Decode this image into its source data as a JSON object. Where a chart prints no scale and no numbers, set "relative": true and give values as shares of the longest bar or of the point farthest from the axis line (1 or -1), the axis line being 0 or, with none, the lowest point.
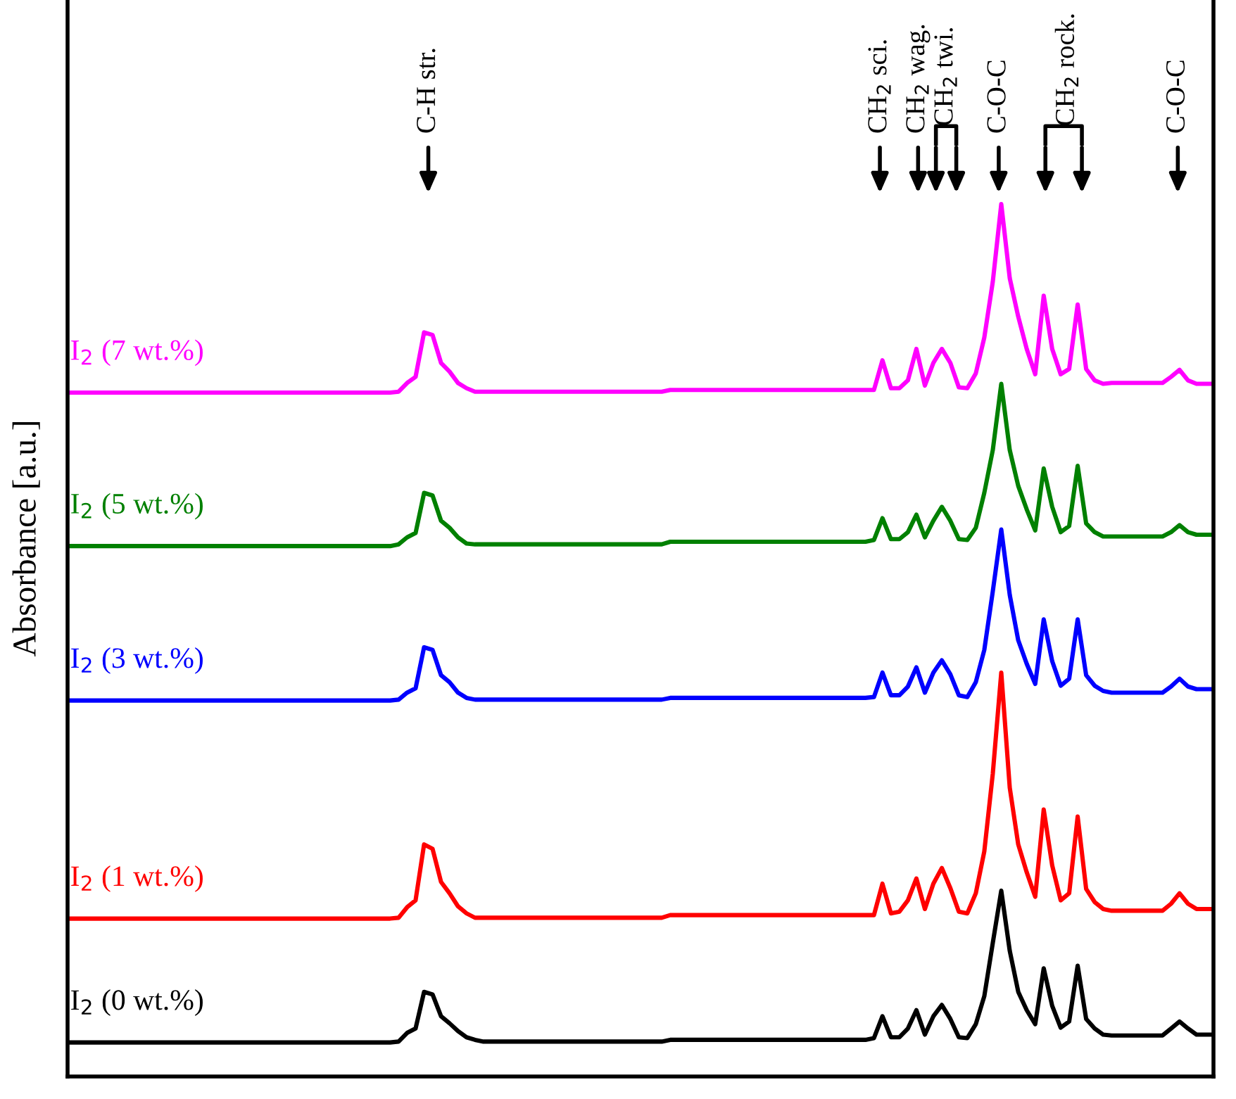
{
  "chart_data": {
    "type": "line",
    "relative": true,
    "ylabel": "Absorbance [a.u.]",
    "categories": [
      null,
      null,
      null,
      null,
      null,
      null,
      null,
      null,
      null,
      null,
      null,
      null,
      null,
      null,
      null,
      null,
      null,
      null,
      null,
      null,
      null,
      null,
      null,
      null,
      null,
      null,
      null,
      null,
      null,
      null,
      null,
      null,
      null,
      null,
      null,
      null,
      null,
      null,
      null,
      null,
      null,
      null,
      null,
      null,
      null,
      null,
      null,
      null,
      null,
      null,
      null,
      null,
      null,
      null,
      null,
      null,
      null,
      null,
      null,
      null,
      null,
      null,
      null,
      null,
      null,
      null,
      null,
      null,
      null,
      null,
      null,
      null,
      null,
      null,
      null,
      null,
      null,
      null,
      null,
      null,
      null,
      null,
      null,
      null,
      null,
      null,
      null,
      null,
      null,
      null,
      null,
      null,
      null,
      null,
      null,
      null,
      null,
      null,
      null,
      null,
      null,
      null,
      null,
      null,
      null,
      null,
      null,
      null,
      null,
      null,
      null,
      null,
      null,
      null,
      null,
      null,
      null,
      null,
      null,
      null,
      null,
      null,
      null,
      null,
      null,
      null,
      null,
      null,
      null,
      null,
      null,
      null,
      null,
      null,
      null,
      null
    ],
    "series": [
      {
        "name": "I$_{2}$ (7 wt.%)",
        "color": "#ff00ff",
        "values": [
          0.784,
          0.784,
          0.784,
          0.784,
          0.784,
          0.784,
          0.784,
          0.784,
          0.784,
          0.784,
          0.784,
          0.784,
          0.784,
          0.784,
          0.784,
          0.784,
          0.784,
          0.784,
          0.784,
          0.784,
          0.784,
          0.784,
          0.784,
          0.784,
          0.784,
          0.784,
          0.784,
          0.784,
          0.784,
          0.784,
          0.784,
          0.784,
          0.784,
          0.784,
          0.784,
          0.784,
          0.784,
          0.784,
          0.784,
          0.785,
          0.795,
          0.802,
          0.853,
          0.85,
          0.818,
          0.808,
          0.795,
          0.789,
          0.785,
          0.785,
          0.785,
          0.785,
          0.785,
          0.785,
          0.785,
          0.785,
          0.785,
          0.785,
          0.785,
          0.785,
          0.785,
          0.785,
          0.785,
          0.785,
          0.785,
          0.785,
          0.785,
          0.785,
          0.785,
          0.785,
          0.785,
          0.787,
          0.787,
          0.787,
          0.787,
          0.787,
          0.787,
          0.787,
          0.787,
          0.787,
          0.787,
          0.787,
          0.787,
          0.787,
          0.787,
          0.787,
          0.787,
          0.787,
          0.787,
          0.787,
          0.787,
          0.787,
          0.787,
          0.787,
          0.787,
          0.787,
          0.821,
          0.789,
          0.789,
          0.798,
          0.834,
          0.792,
          0.818,
          0.834,
          0.818,
          0.79,
          0.789,
          0.806,
          0.847,
          0.911,
          1.0,
          0.915,
          0.871,
          0.834,
          0.805,
          0.895,
          0.834,
          0.805,
          0.811,
          0.885,
          0.811,
          0.798,
          0.794,
          0.795,
          0.795,
          0.795,
          0.795,
          0.795,
          0.795,
          0.795,
          0.802,
          0.81,
          0.798,
          0.794,
          0.794,
          0.794
        ]
      },
      {
        "name": "I$_{2}$ (5 wt.%)",
        "color": "#008000",
        "values": [
          0.608,
          0.608,
          0.608,
          0.608,
          0.608,
          0.608,
          0.608,
          0.608,
          0.608,
          0.608,
          0.608,
          0.608,
          0.608,
          0.608,
          0.608,
          0.608,
          0.608,
          0.608,
          0.608,
          0.608,
          0.608,
          0.608,
          0.608,
          0.608,
          0.608,
          0.608,
          0.608,
          0.608,
          0.608,
          0.608,
          0.608,
          0.608,
          0.608,
          0.608,
          0.608,
          0.608,
          0.608,
          0.608,
          0.608,
          0.61,
          0.618,
          0.623,
          0.669,
          0.666,
          0.637,
          0.629,
          0.618,
          0.611,
          0.61,
          0.61,
          0.61,
          0.61,
          0.61,
          0.61,
          0.61,
          0.61,
          0.61,
          0.61,
          0.61,
          0.61,
          0.61,
          0.61,
          0.61,
          0.61,
          0.61,
          0.61,
          0.61,
          0.61,
          0.61,
          0.61,
          0.61,
          0.613,
          0.613,
          0.613,
          0.613,
          0.613,
          0.613,
          0.613,
          0.613,
          0.613,
          0.613,
          0.613,
          0.613,
          0.613,
          0.613,
          0.613,
          0.613,
          0.613,
          0.613,
          0.613,
          0.613,
          0.613,
          0.613,
          0.613,
          0.613,
          0.615,
          0.64,
          0.616,
          0.616,
          0.624,
          0.644,
          0.618,
          0.637,
          0.653,
          0.637,
          0.616,
          0.615,
          0.629,
          0.669,
          0.718,
          0.794,
          0.718,
          0.677,
          0.65,
          0.626,
          0.697,
          0.653,
          0.624,
          0.631,
          0.7,
          0.634,
          0.624,
          0.619,
          0.619,
          0.619,
          0.619,
          0.619,
          0.619,
          0.619,
          0.619,
          0.624,
          0.632,
          0.624,
          0.621,
          0.621,
          0.621
        ]
      },
      {
        "name": "I$_{2}$ (3 wt.%)",
        "color": "#0000ff",
        "values": [
          0.431,
          0.431,
          0.431,
          0.431,
          0.431,
          0.431,
          0.431,
          0.431,
          0.431,
          0.431,
          0.431,
          0.431,
          0.431,
          0.431,
          0.431,
          0.431,
          0.431,
          0.431,
          0.431,
          0.431,
          0.431,
          0.431,
          0.431,
          0.431,
          0.431,
          0.431,
          0.431,
          0.431,
          0.431,
          0.431,
          0.431,
          0.431,
          0.431,
          0.431,
          0.431,
          0.431,
          0.431,
          0.431,
          0.431,
          0.432,
          0.44,
          0.445,
          0.492,
          0.489,
          0.46,
          0.452,
          0.44,
          0.434,
          0.432,
          0.432,
          0.432,
          0.432,
          0.432,
          0.432,
          0.432,
          0.432,
          0.432,
          0.432,
          0.432,
          0.432,
          0.432,
          0.432,
          0.432,
          0.432,
          0.432,
          0.432,
          0.432,
          0.432,
          0.432,
          0.432,
          0.432,
          0.434,
          0.434,
          0.434,
          0.434,
          0.434,
          0.434,
          0.434,
          0.434,
          0.434,
          0.434,
          0.434,
          0.434,
          0.434,
          0.434,
          0.434,
          0.434,
          0.434,
          0.434,
          0.434,
          0.434,
          0.434,
          0.434,
          0.434,
          0.434,
          0.435,
          0.463,
          0.437,
          0.437,
          0.447,
          0.469,
          0.44,
          0.463,
          0.477,
          0.461,
          0.437,
          0.435,
          0.452,
          0.489,
          0.556,
          0.627,
          0.552,
          0.5,
          0.473,
          0.45,
          0.524,
          0.476,
          0.448,
          0.456,
          0.524,
          0.46,
          0.448,
          0.442,
          0.44,
          0.44,
          0.44,
          0.44,
          0.44,
          0.44,
          0.44,
          0.447,
          0.456,
          0.447,
          0.444,
          0.444,
          0.444
        ]
      },
      {
        "name": "I$_{2}$ (1 wt.%)",
        "color": "#ff0000",
        "values": [
          0.181,
          0.181,
          0.181,
          0.181,
          0.181,
          0.181,
          0.181,
          0.181,
          0.181,
          0.181,
          0.181,
          0.181,
          0.181,
          0.181,
          0.181,
          0.181,
          0.181,
          0.181,
          0.181,
          0.181,
          0.181,
          0.181,
          0.181,
          0.181,
          0.181,
          0.181,
          0.181,
          0.181,
          0.181,
          0.181,
          0.181,
          0.181,
          0.181,
          0.181,
          0.181,
          0.181,
          0.181,
          0.181,
          0.181,
          0.182,
          0.194,
          0.202,
          0.266,
          0.261,
          0.223,
          0.21,
          0.195,
          0.187,
          0.182,
          0.182,
          0.182,
          0.182,
          0.182,
          0.182,
          0.182,
          0.182,
          0.182,
          0.182,
          0.182,
          0.182,
          0.182,
          0.182,
          0.182,
          0.182,
          0.182,
          0.182,
          0.182,
          0.182,
          0.182,
          0.182,
          0.182,
          0.185,
          0.185,
          0.185,
          0.185,
          0.185,
          0.185,
          0.185,
          0.185,
          0.185,
          0.185,
          0.185,
          0.185,
          0.185,
          0.185,
          0.185,
          0.185,
          0.185,
          0.185,
          0.185,
          0.185,
          0.185,
          0.185,
          0.185,
          0.185,
          0.185,
          0.221,
          0.187,
          0.189,
          0.202,
          0.227,
          0.192,
          0.221,
          0.239,
          0.216,
          0.189,
          0.187,
          0.21,
          0.258,
          0.347,
          0.463,
          0.331,
          0.266,
          0.234,
          0.206,
          0.306,
          0.242,
          0.202,
          0.21,
          0.298,
          0.215,
          0.2,
          0.192,
          0.19,
          0.19,
          0.19,
          0.19,
          0.19,
          0.19,
          0.19,
          0.198,
          0.21,
          0.198,
          0.192,
          0.192,
          0.192
        ]
      },
      {
        "name": "I$_{2}$ (0 wt.%)",
        "color": "#000000",
        "values": [
          0.039,
          0.039,
          0.039,
          0.039,
          0.039,
          0.039,
          0.039,
          0.039,
          0.039,
          0.039,
          0.039,
          0.039,
          0.039,
          0.039,
          0.039,
          0.039,
          0.039,
          0.039,
          0.039,
          0.039,
          0.039,
          0.039,
          0.039,
          0.039,
          0.039,
          0.039,
          0.039,
          0.039,
          0.039,
          0.039,
          0.039,
          0.039,
          0.039,
          0.039,
          0.039,
          0.039,
          0.039,
          0.039,
          0.039,
          0.04,
          0.05,
          0.055,
          0.097,
          0.094,
          0.069,
          0.061,
          0.052,
          0.045,
          0.042,
          0.04,
          0.04,
          0.04,
          0.04,
          0.04,
          0.04,
          0.04,
          0.04,
          0.04,
          0.04,
          0.04,
          0.04,
          0.04,
          0.04,
          0.04,
          0.04,
          0.04,
          0.04,
          0.04,
          0.04,
          0.04,
          0.04,
          0.042,
          0.042,
          0.042,
          0.042,
          0.042,
          0.042,
          0.042,
          0.042,
          0.042,
          0.042,
          0.042,
          0.042,
          0.042,
          0.042,
          0.042,
          0.042,
          0.042,
          0.042,
          0.042,
          0.042,
          0.042,
          0.042,
          0.042,
          0.042,
          0.044,
          0.069,
          0.045,
          0.045,
          0.055,
          0.076,
          0.048,
          0.069,
          0.082,
          0.066,
          0.045,
          0.044,
          0.06,
          0.092,
          0.153,
          0.213,
          0.144,
          0.097,
          0.076,
          0.06,
          0.124,
          0.081,
          0.056,
          0.063,
          0.127,
          0.066,
          0.055,
          0.048,
          0.047,
          0.047,
          0.047,
          0.047,
          0.047,
          0.047,
          0.047,
          0.055,
          0.063,
          0.055,
          0.048,
          0.048,
          0.048
        ]
      }
    ],
    "annotations": [
      "C-H str.",
      "CH$_{2}$ sci.",
      "CH$_{2}$ wag.",
      "CH$_{2}$ twi.",
      "C-O-C",
      "CH$_{2}$ rock.",
      "C-O-C"
    ]
  }
}
